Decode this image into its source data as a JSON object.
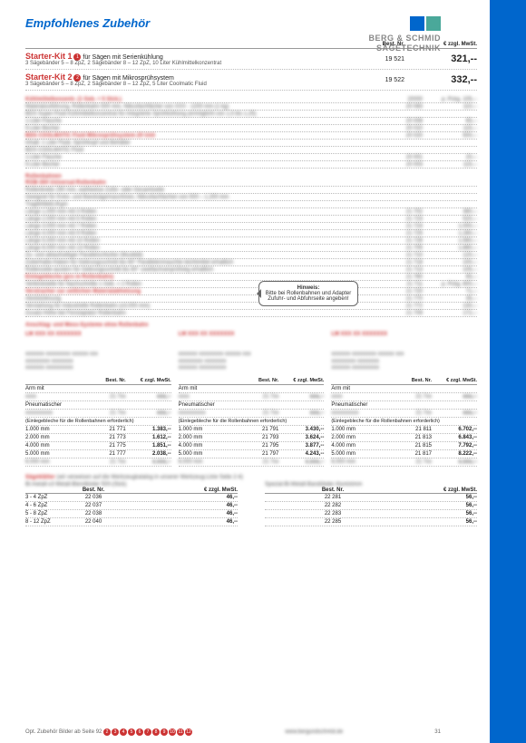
{
  "sidebar_label": "INDUSTRIE-LINE",
  "brand_line1": "BERG & SCHMID",
  "brand_line2": "SÄGETECHNIK",
  "page_title": "Empfohlenes Zubehör",
  "header": {
    "bestnr": "Best. Nr.",
    "price": "€ zzgl. MwSt."
  },
  "kits": [
    {
      "name": "Starter-Kit 1",
      "bullet": "1",
      "for": "für Sägen mit Serienkühlung",
      "desc": "3 Sägebänder 5 – 8 ZpZ, 2 Sägebänder 8 – 12 ZpZ, 10 Liter Kühlmittelkonzentrat",
      "bestnr": "19 521",
      "price": "321,--"
    },
    {
      "name": "Starter-Kit 2",
      "bullet": "2",
      "for": "für Sägen mit Mikrosprühsystem",
      "desc": "3 Sägebänder 5 – 8 ZpZ, 2 Sägebänder 8 – 12 ZpZ, 5 Liter Coolmatic Fluid",
      "bestnr": "19 522",
      "price": "332,--"
    }
  ],
  "misc_top": [
    {
      "l": "Kühlmittelkonzentr. (1 Geb. = 5 Stck.)",
      "c1": "20000",
      "c2": "p. Pckg. 105,--",
      "red": true
    },
    {
      "l": "Materialzuführung, Rollenbahn 500 mm, Nibcofachfächer von XXX - 1200 mm (1 kg)",
      "c1": "20 083",
      "c2": "110,--"
    },
    {
      "l": "BDS Super-Fluid Kühlmittelkonzentrat für Integrierte Sprühkühlung (ermöglicht von 1,5 bis 1,25)",
      "c1": "",
      "c2": ""
    },
    {
      "l": "1-Liter Flasche",
      "c1": "20 008",
      "c2": "65,--"
    },
    {
      "l": "5-Liter Becher",
      "c1": "20 010",
      "c2": "115,--"
    },
    {
      "l": "BDS COOLMATIC Fluid Mikrosprühsystem 20 Unit",
      "c1": "20 020",
      "c2": "500,--",
      "red": true
    },
    {
      "l": "Inhalt: 1 Liter Fluid, Sprühkopf und Behälter",
      "c1": "",
      "c2": ""
    },
    {
      "l": "BDS COOLMATIC Fluid",
      "c1": "",
      "c2": ""
    },
    {
      "l": "1-Liter Flasche",
      "c1": "20 001",
      "c2": "20,--"
    },
    {
      "l": "5-Liter Becher",
      "c1": "20 003",
      "c2": "115,--"
    }
  ],
  "roll_header": "Rollenbahnen",
  "roll_rows": [
    {
      "l": "ROB-300 Universal-Rollenbahn",
      "c1": "",
      "c2": "",
      "red": true
    },
    {
      "l": "Rollenbreite 290 mm, wahlweise Zufür- oder Gesamtseite",
      "c1": "",
      "c2": ""
    },
    {
      "l": "Geeignet für Kreis- und Bandsägemaschinen, Nibcofachfachen von 500 – 1.200 mm",
      "c1": "",
      "c2": ""
    },
    {
      "l": "Tragfehlleitl./Kgm",
      "c1": "",
      "c2": ""
    },
    {
      "l": "Länge 1.000 mm mit 3 Rollen",
      "c1": "21 702",
      "c2": "380,--"
    },
    {
      "l": "Länge 2.000 mm mit 5 Rollen",
      "c1": "21 723",
      "c2": "520,--"
    },
    {
      "l": "Länge 3.000 mm mit 7 Rollen",
      "c1": "21 724",
      "c2": "1.000,--"
    },
    {
      "l": "Länge 4.000 mm mit 9 Rollen",
      "c1": "21 725",
      "c2": "1.280,--"
    },
    {
      "l": "Länge 5.000 mm mit 10 Rollen",
      "c1": "21 726",
      "c2": "1.560,--"
    },
    {
      "l": "Länge 6.000 mm mit 13 Rollen",
      "c1": "21 705",
      "c2": "1.880,--"
    },
    {
      "l": "Zu- und ablaufseitiger Parallelschlußer (Muobild)",
      "c1": "21 710",
      "c2": "120,--"
    },
    {
      "l": "Zuberhalte-Haken für Gebrungsschnitt bis 60° Parallelenmauchte leichtmittel erhaltlich",
      "c1": "21 718",
      "c2": "100,--"
    },
    {
      "l": "Rollenzeile-austern für Gebrungsschnitt bis 60° zweifachsenprüfsieg erhaltlich",
      "c1": "21 713",
      "c2": "105,--"
    },
    {
      "l": "Einlegebleche (pro m Rollenbahn)",
      "c1": "21 760",
      "c2": "65,--",
      "red": true
    },
    {
      "l": "Verbindstelle für Nachschnitte 1 Geb. = 2 Rollen",
      "c1": "21 711",
      "c2": "p. Pckg. 800,--"
    },
    {
      "l": "Verstracher zur zeitlichen Materialabhetzung",
      "c1": "21 720",
      "c2": "71,--",
      "red": true
    },
    {
      "l": "Abstützleisung",
      "c1": "21 770",
      "c2": "35,--"
    },
    {
      "l": "Verstarlung für Industrielle Rollenbahn (x3.000 mm)",
      "c1": "21 772",
      "c2": "130,--"
    },
    {
      "l": "Zusatz-Höhe bei Fenstaplatzr Rollenbahn",
      "c1": "21 709",
      "c2": "172,--"
    }
  ],
  "anschlag_header": "Anschlag- und Mess-Systeme ohne Rollenbahn",
  "hint_title": "Hinweis:",
  "hint_body": "Bitte bei Rollenbahnen und Adapter Zufuhr- und Abfuhrseite angeben!",
  "col_labels": {
    "arm": "Arm mit",
    "pneum": "Pneumatischer",
    "einlege": "(Einlegebleche für die Rollenbahnen erforderlich)"
  },
  "col_hdr": {
    "c1": "",
    "c2": "Best. Nr.",
    "c3": "€ zzgl. MwSt."
  },
  "arm_tables": [
    [
      {
        "len": "1.000 mm",
        "bn": "21 771",
        "pr": "1.383,--"
      },
      {
        "len": "2.000 mm",
        "bn": "21 773",
        "pr": "1.612,--"
      },
      {
        "len": "4.000 mm",
        "bn": "21 775",
        "pr": "1.851,--"
      },
      {
        "len": "5.000 mm",
        "bn": "21 777",
        "pr": "2.038,--"
      }
    ],
    [
      {
        "len": "1.000 mm",
        "bn": "21 791",
        "pr": "3.430,--"
      },
      {
        "len": "2.000 mm",
        "bn": "21 793",
        "pr": "3.624,--"
      },
      {
        "len": "4.000 mm",
        "bn": "21 795",
        "pr": "3.877,--"
      },
      {
        "len": "5.000 mm",
        "bn": "21 797",
        "pr": "4.243,--"
      }
    ],
    [
      {
        "len": "1.000 mm",
        "bn": "21 811",
        "pr": "6.702,--"
      },
      {
        "len": "2.000 mm",
        "bn": "21 813",
        "pr": "6.843,--"
      },
      {
        "len": "4.000 mm",
        "bn": "21 815",
        "pr": "7.792,--"
      },
      {
        "len": "5.000 mm",
        "bn": "21 817",
        "pr": "8.222,--"
      }
    ]
  ],
  "bands_header_blur": "Sägeblätter",
  "bands_sub_blur": "(wir verweisen auf die Werkzeugkatalog in unserer Werkzeug-Linie Seite 2-4)",
  "bands_sub2_blur": "Bi-metall-x3 Metall-Blendbüder 500-(Stck)",
  "bands_sub3_blur": "Spezial-Bi-Metall-Bandübder Aluminimm",
  "band_hdr": {
    "c1": "",
    "c2": "Best. Nr.",
    "c3": "€ zzgl. MwSt."
  },
  "band_rows_left": [
    {
      "z": "3 - 4 ZpZ",
      "bn": "22 036",
      "pr": "46,--"
    },
    {
      "z": "4 - 6 ZpZ",
      "bn": "22 037",
      "pr": "46,--"
    },
    {
      "z": "5 - 8 ZpZ",
      "bn": "22 038",
      "pr": "46,--"
    },
    {
      "z": "8 - 12 ZpZ",
      "bn": "22 040",
      "pr": "46,--"
    }
  ],
  "band_rows_right": [
    {
      "z": "",
      "bn": "22 281",
      "pr": "56,--"
    },
    {
      "z": "",
      "bn": "22 282",
      "pr": "56,--"
    },
    {
      "z": "",
      "bn": "22 283",
      "pr": "56,--"
    },
    {
      "z": "",
      "bn": "22 285",
      "pr": "56,--"
    }
  ],
  "footer_text": "Opt. Zubehör Bilder ab Seite 92",
  "footer_nums": [
    "2",
    "3",
    "4",
    "5",
    "6",
    "7",
    "8",
    "9",
    "10",
    "11",
    "12"
  ],
  "footer_url": "www.bergundschmid.de",
  "page_num": "31"
}
